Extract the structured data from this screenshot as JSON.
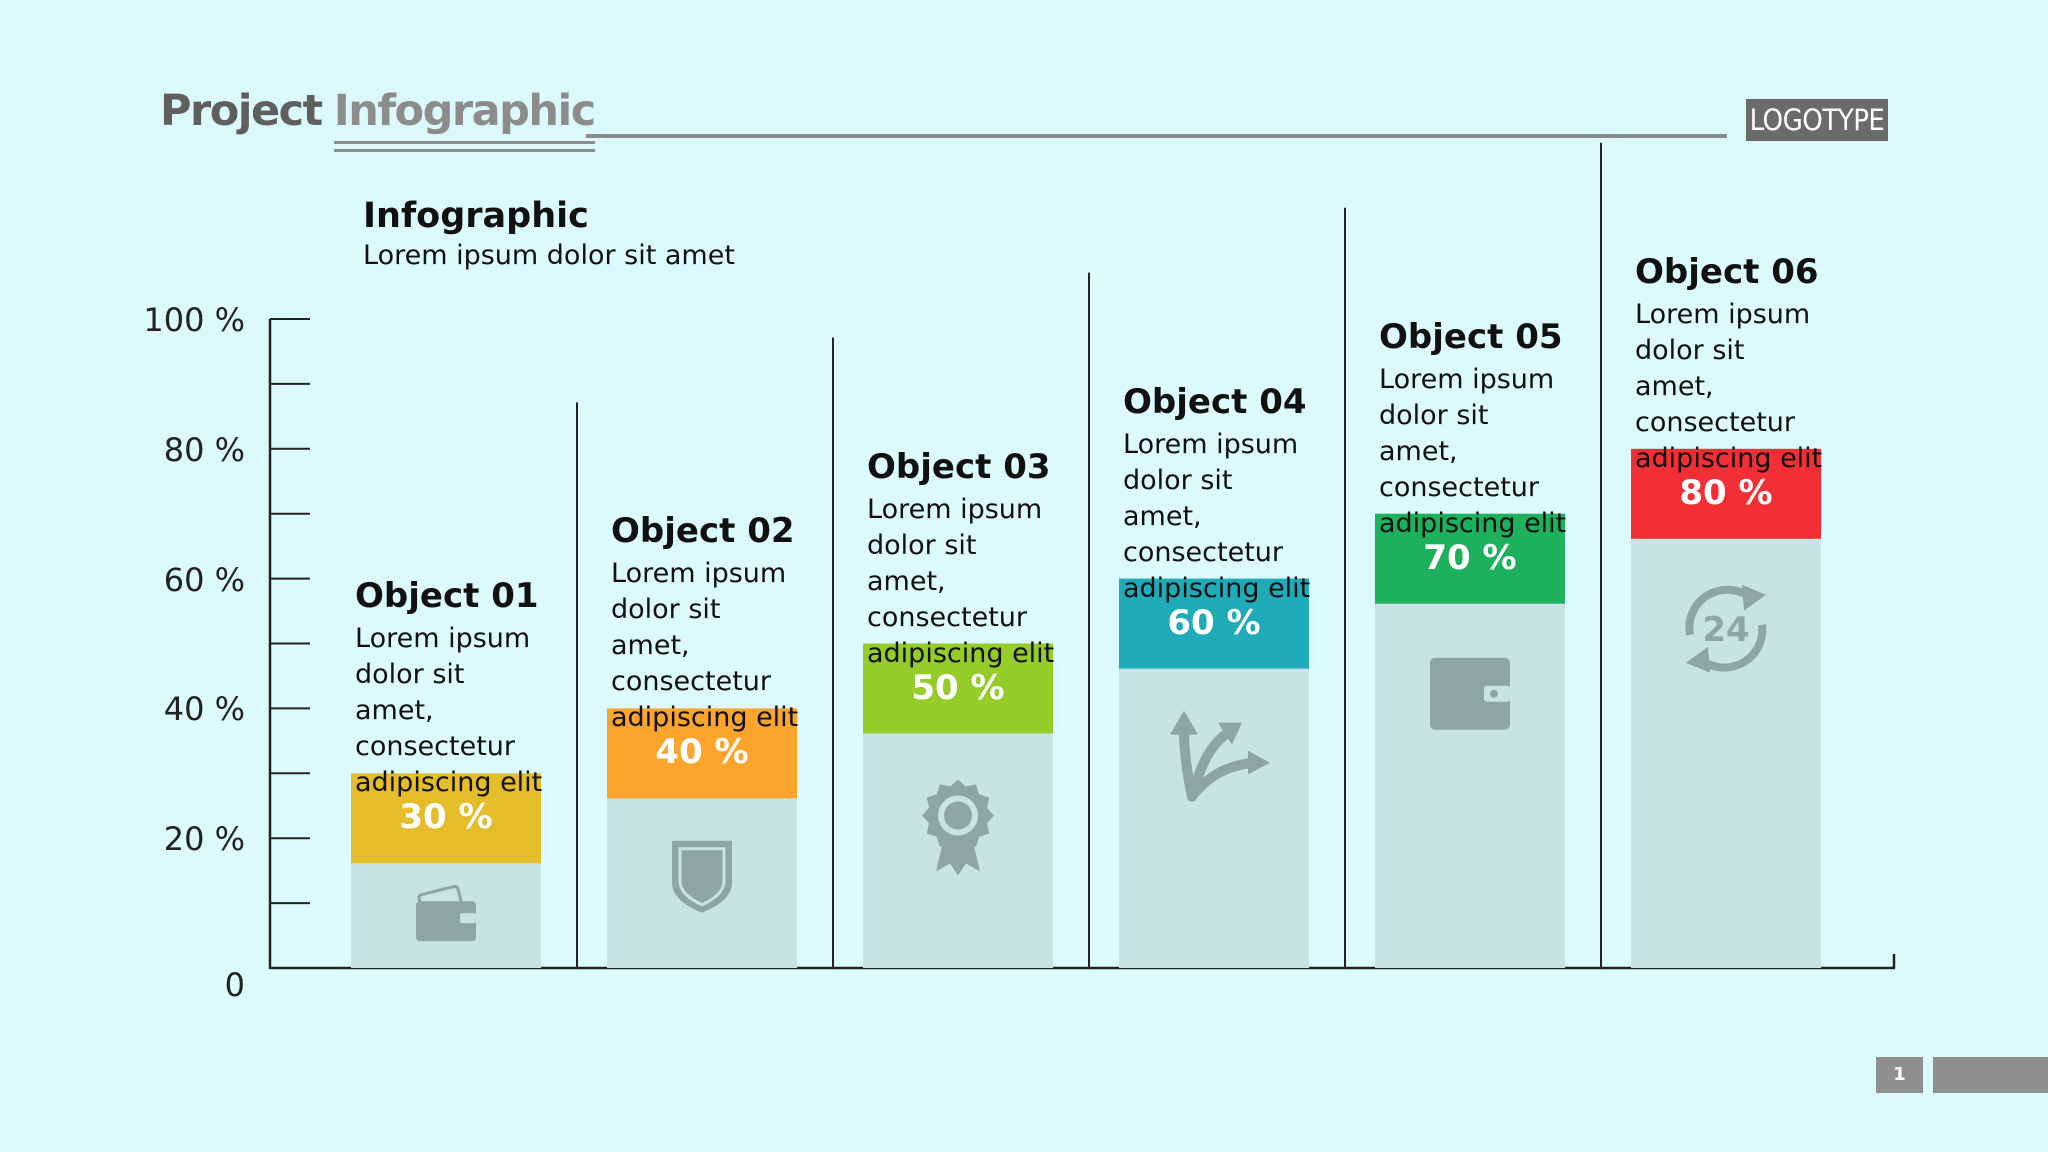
{
  "header": {
    "title_part1": "Project",
    "title_part2": "Infographic",
    "logo": "LOGOTYPE"
  },
  "subheading": {
    "title": "Infographic",
    "text": "Lorem ipsum dolor sit amet"
  },
  "page_number": "1",
  "colors": {
    "background": "#dcfafd",
    "bar_body": "#c8e3e6",
    "icon": "#8ea4a8",
    "axis": "#222222"
  },
  "chart_data": {
    "type": "bar",
    "y_ticks": [
      "100 %",
      "80 %",
      "60 %",
      "40 %",
      "20 %",
      "0"
    ],
    "ylim": [
      0,
      100
    ],
    "major_tick_step": 20,
    "minor_tick_step": 10,
    "categories": [
      "Object 01",
      "Object 02",
      "Object 03",
      "Object 04",
      "Object 05",
      "Object 06"
    ],
    "values": [
      30,
      40,
      50,
      60,
      70,
      80
    ],
    "value_labels": [
      "30 %",
      "40 %",
      "50 %",
      "60 %",
      "70 %",
      "80 %"
    ],
    "descriptions": [
      [
        "Lorem ipsum",
        "dolor sit amet,",
        "consectetur",
        "adipiscing elit"
      ],
      [
        "Lorem ipsum",
        "dolor sit amet,",
        "consectetur",
        "adipiscing elit"
      ],
      [
        "Lorem ipsum",
        "dolor sit amet,",
        "consectetur",
        "adipiscing elit"
      ],
      [
        "Lorem ipsum",
        "dolor sit amet,",
        "consectetur",
        "adipiscing elit"
      ],
      [
        "Lorem ipsum",
        "dolor sit amet,",
        "consectetur",
        "adipiscing elit"
      ],
      [
        "Lorem ipsum",
        "dolor sit amet,",
        "consectetur",
        "adipiscing elit"
      ]
    ],
    "colors": [
      "#e5bd2a",
      "#fba42e",
      "#95cc2a",
      "#1fabb8",
      "#1db15d",
      "#f12f35"
    ],
    "icons": [
      "wallet-card-icon",
      "shield-icon",
      "award-badge-icon",
      "arrows-split-icon",
      "wallet-icon",
      "24-hours-icon"
    ]
  }
}
